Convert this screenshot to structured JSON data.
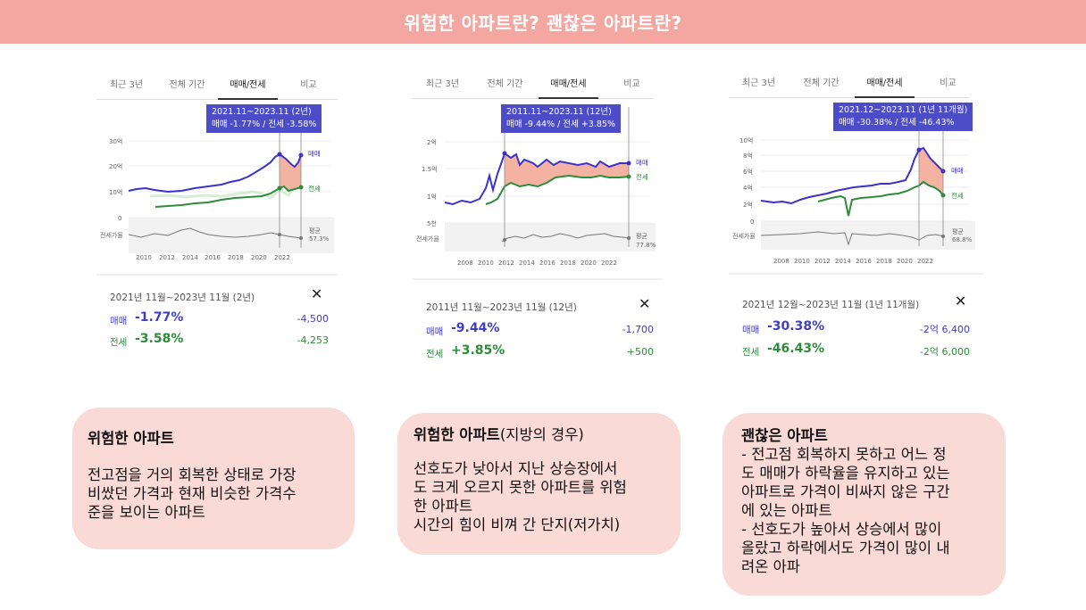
{
  "header": {
    "title": "위험한 아파트란?  괜찮은 아파트란?"
  },
  "panels": [
    {
      "tabs": [
        "최근 3년",
        "전체 기간",
        "매매/전세",
        "비교"
      ],
      "active_tab": 2,
      "tooltip": {
        "range": "2021.11~2023.11 (2년)",
        "values": "매매 -1.77%  /  전세 -3.58%"
      },
      "y_labels": [
        "30억",
        "20억",
        "10억",
        "0"
      ],
      "x_labels": [
        "2010",
        "2012",
        "2014",
        "2016",
        "2018",
        "2020",
        "2022"
      ],
      "ratio_label": "전세가율",
      "series_labels": {
        "sale": "매매",
        "jeonse": "전세"
      },
      "avg_label": "평균",
      "avg_value": "57.3%",
      "summary": {
        "range": "2021년 11월~2023년 11월 (2년)",
        "sale_label": "매매",
        "sale_pct": "-1.77%",
        "sale_diff": "-4,500",
        "jeonse_label": "전세",
        "jeonse_pct": "-3.58%",
        "jeonse_diff": "-4,253"
      }
    },
    {
      "tabs": [
        "최근 3년",
        "전체 기간",
        "매매/전세",
        "비교"
      ],
      "active_tab": 2,
      "tooltip": {
        "range": "2011.11~2023.11 (12년)",
        "values": "매매 -9.44%  /  전세 +3.85%"
      },
      "y_labels": [
        "2억",
        "1.5억",
        "1억",
        "5천"
      ],
      "x_labels": [
        "2008",
        "2010",
        "2012",
        "2014",
        "2016",
        "2018",
        "2020",
        "2022"
      ],
      "ratio_label": "전세가율",
      "series_labels": {
        "sale": "매매",
        "jeonse": "전세"
      },
      "avg_label": "평균",
      "avg_value": "77.8%",
      "summary": {
        "range": "2011년 11월~2023년 11월 (12년)",
        "sale_label": "매매",
        "sale_pct": "-9.44%",
        "sale_diff": "-1,700",
        "jeonse_label": "전세",
        "jeonse_pct": "+3.85%",
        "jeonse_diff": "+500"
      }
    },
    {
      "tabs": [
        "최근 3년",
        "전체 기간",
        "매매/전세",
        "비교"
      ],
      "active_tab": 2,
      "tooltip": {
        "range": "2021.12~2023.11 (1년 11개월)",
        "values": "매매 -30.38%  /  전세 -46.43%"
      },
      "y_labels": [
        "10억",
        "8억",
        "6억",
        "4억",
        "2억",
        "0"
      ],
      "x_labels": [
        "2008",
        "2010",
        "2012",
        "2014",
        "2016",
        "2018",
        "2020",
        "2022"
      ],
      "ratio_label": "전세가율",
      "series_labels": {
        "sale": "매매",
        "jeonse": "전세"
      },
      "avg_label": "평균",
      "avg_value": "68.8%",
      "summary": {
        "range": "2021년 12월~2023년 11월 (1년 11개월)",
        "sale_label": "매매",
        "sale_pct": "-30.38%",
        "sale_diff": "-2억 6,400",
        "jeonse_label": "전세",
        "jeonse_pct": "-46.43%",
        "jeonse_diff": "-2억 6,000"
      }
    }
  ],
  "notes": [
    {
      "title": "위험한 아파트",
      "title_suffix": "",
      "body": "전고점을 거의 회복한 상태로 가장\n비쌌던 가격과 현재 비슷한 가격수\n준을 보이는 아파트"
    },
    {
      "title": "위험한 아파트",
      "title_suffix": "(지방의 경우)",
      "body": "선호도가 낮아서 지난 상승장에서\n도 크게 오르지 못한 아파트를 위험\n한 아파트\n시간의 힘이 비껴 간 단지(저가치)"
    },
    {
      "title": "괜찮은 아파트",
      "title_suffix": "",
      "body": "- 전고점 회복하지 못하고 어느 정\n도 매매가 하락율을 유지하고 있는\n아파트로 가격이 비싸지 않은 구간\n에 있는 아파트\n- 선호도가 높아서 상승에서 많이\n올랐고 하락에서도 가격이 많이 내\n려온 아파"
    }
  ],
  "colors": {
    "banner": "#f4a7a0",
    "sale_line": "#3b33c9",
    "jeonse_line": "#2e8b3b",
    "fill": "#f4b3a2",
    "tooltip": "#4d4cc8",
    "note_bg": "#fadad6"
  }
}
